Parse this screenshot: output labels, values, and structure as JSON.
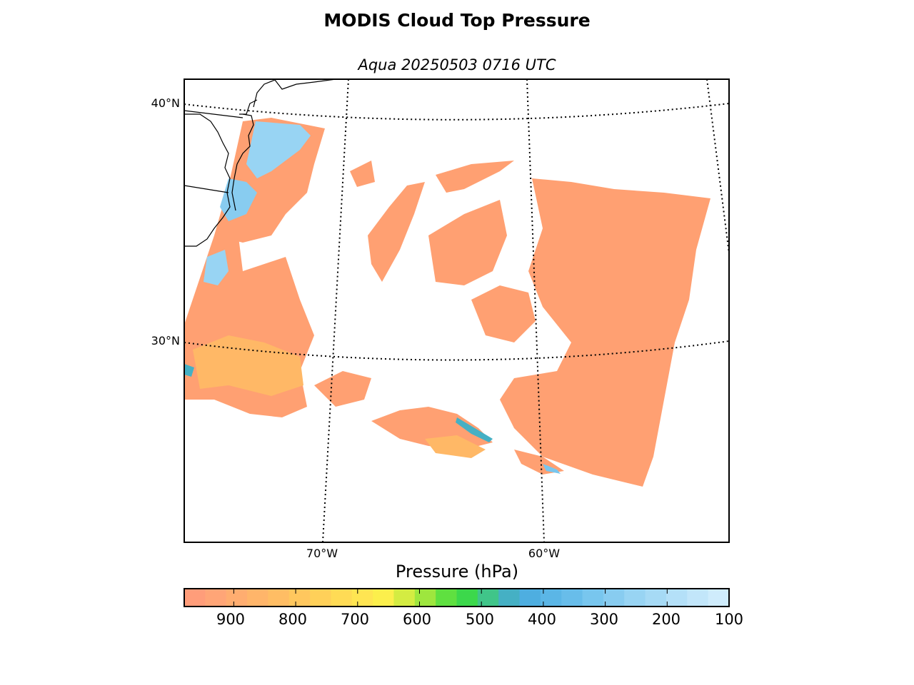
{
  "title": "MODIS Cloud Top Pressure",
  "subtitle": "Aqua 20250503 0716 UTC",
  "latitude_labels": [
    "40°N",
    "30°N"
  ],
  "longitude_labels": [
    "70°W",
    "60°W"
  ],
  "colorbar": {
    "label": "Pressure (hPa)",
    "ticks": [
      "900",
      "800",
      "700",
      "600",
      "500",
      "400",
      "300",
      "200",
      "100"
    ],
    "colors": [
      "#ff9d7a",
      "#ffa577",
      "#ffad70",
      "#ffb56a",
      "#ffbd64",
      "#ffc75e",
      "#ffd059",
      "#ffdb55",
      "#ffe552",
      "#fcef4c",
      "#d4ec42",
      "#9ee63e",
      "#5fe040",
      "#3cd84b",
      "#40c589",
      "#45b0c4",
      "#4eaee0",
      "#5bb6e6",
      "#68bdea",
      "#78c6ee",
      "#88ccf0",
      "#98d4f3",
      "#a6daf5",
      "#b4e0f8",
      "#c2e6fa",
      "#cfecfc"
    ]
  },
  "chart_data": {
    "type": "heatmap",
    "title": "MODIS Cloud Top Pressure",
    "subtitle": "Aqua 20250503 0716 UTC",
    "variable": "Cloud Top Pressure",
    "units": "hPa",
    "colorbar_range": [
      980,
      100
    ],
    "colorbar_ticks": [
      900,
      800,
      700,
      600,
      500,
      400,
      300,
      200,
      100
    ],
    "gridlines": {
      "latitudes": [
        30,
        40
      ],
      "longitudes": [
        -70,
        -60
      ]
    },
    "dominant_value_range_hPa": [
      800,
      950
    ],
    "high_cloud_region": "near US east coast, 100-400 hPa"
  }
}
